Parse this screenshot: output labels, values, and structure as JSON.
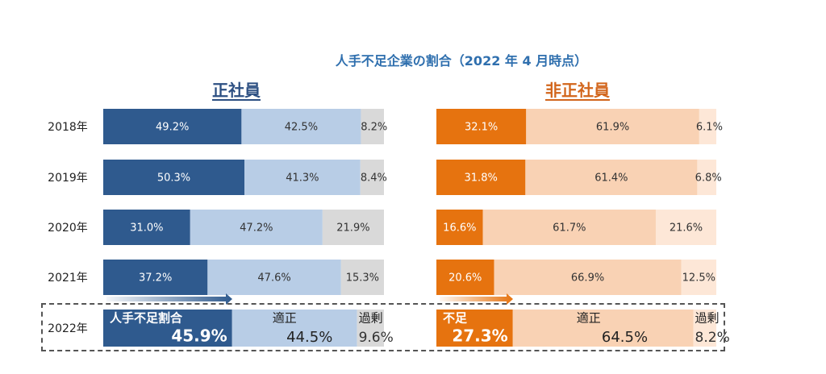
{
  "title": "人手不足企業の割合（2022 年 4 月時点）",
  "panels": [
    {
      "title": "正社員"
    },
    {
      "title": "非正社員"
    }
  ],
  "highlight_2022": {
    "regular": {
      "shortage_label": "人手不足割合",
      "appropriate_label": "適正",
      "surplus_label": "過剰"
    },
    "nonregular": {
      "shortage_label": "不足",
      "appropriate_label": "適正",
      "surplus_label": "過剰"
    }
  },
  "colors": {
    "regular": [
      "#2f5a8e",
      "#b8cde6",
      "#d9d9d9"
    ],
    "nonregular": [
      "#e6730f",
      "#f9d2b4",
      "#fde7d7"
    ],
    "regular_text": [
      "#ffffff",
      "#333333",
      "#333333"
    ],
    "nonregular_text": [
      "#ffffff",
      "#333333",
      "#333333"
    ]
  },
  "chart_data": [
    {
      "type": "bar",
      "title": "正社員",
      "orientation": "horizontal",
      "stacked": true,
      "categories": [
        "2018年",
        "2019年",
        "2020年",
        "2021年",
        "2022年"
      ],
      "series": [
        {
          "name": "人手不足割合",
          "values": [
            49.2,
            50.3,
            31.0,
            37.2,
            45.9
          ]
        },
        {
          "name": "適正",
          "values": [
            42.5,
            41.3,
            47.2,
            47.6,
            44.5
          ]
        },
        {
          "name": "過剰",
          "values": [
            8.2,
            8.4,
            21.9,
            15.3,
            9.6
          ]
        }
      ]
    },
    {
      "type": "bar",
      "title": "非正社員",
      "orientation": "horizontal",
      "stacked": true,
      "categories": [
        "2018年",
        "2019年",
        "2020年",
        "2021年",
        "2022年"
      ],
      "series": [
        {
          "name": "不足",
          "values": [
            32.1,
            31.8,
            16.6,
            20.6,
            27.3
          ]
        },
        {
          "name": "適正",
          "values": [
            61.9,
            61.4,
            61.7,
            66.9,
            64.5
          ]
        },
        {
          "name": "過剰",
          "values": [
            6.1,
            6.8,
            21.6,
            12.5,
            8.2
          ]
        }
      ]
    }
  ]
}
